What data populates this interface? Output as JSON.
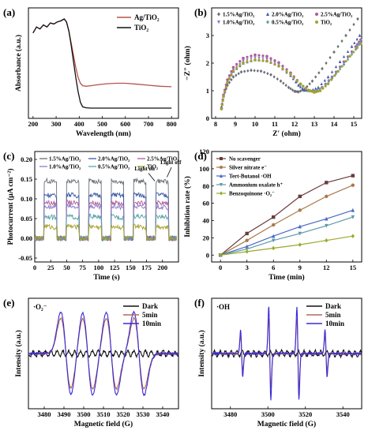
{
  "chart_data": [
    {
      "panel": "(a)",
      "type": "line",
      "xlabel": "Wavelength (nm)",
      "ylabel": "Absorbance (a.u.)",
      "xlim": [
        180,
        830
      ],
      "ylim": [
        -0.05,
        1.05
      ],
      "xticks": [
        200,
        300,
        400,
        500,
        600,
        700,
        800
      ],
      "yticks_shown": false,
      "legend_position": "top-right",
      "series": [
        {
          "name": "Ag/TiO₂",
          "color": "#b5534a",
          "x": [
            200,
            215,
            230,
            245,
            260,
            275,
            290,
            305,
            320,
            335,
            345,
            355,
            365,
            375,
            385,
            395,
            405,
            415,
            430,
            450,
            480,
            520,
            560,
            600,
            650,
            700,
            750,
            800
          ],
          "y": [
            0.8,
            0.86,
            0.84,
            0.88,
            0.86,
            0.9,
            0.89,
            0.91,
            0.92,
            0.94,
            0.91,
            0.82,
            0.7,
            0.58,
            0.46,
            0.36,
            0.3,
            0.275,
            0.27,
            0.275,
            0.285,
            0.295,
            0.3,
            0.3,
            0.29,
            0.28,
            0.27,
            0.265
          ]
        },
        {
          "name": "TiO₂",
          "color": "#111111",
          "x": [
            200,
            215,
            230,
            245,
            260,
            275,
            290,
            305,
            320,
            335,
            345,
            355,
            365,
            375,
            385,
            395,
            405,
            415,
            430,
            450,
            480,
            520,
            560,
            600,
            650,
            700,
            750,
            800
          ],
          "y": [
            0.8,
            0.86,
            0.84,
            0.88,
            0.86,
            0.9,
            0.89,
            0.91,
            0.92,
            0.94,
            0.91,
            0.82,
            0.68,
            0.52,
            0.36,
            0.22,
            0.11,
            0.065,
            0.055,
            0.052,
            0.052,
            0.052,
            0.052,
            0.052,
            0.052,
            0.052,
            0.052,
            0.052
          ]
        }
      ]
    },
    {
      "panel": "(b)",
      "type": "scatter",
      "xlabel": "Z′ (ohm)",
      "ylabel": "−Z″ (ohm)",
      "xlim": [
        7.8,
        15.4
      ],
      "ylim": [
        0,
        4.0
      ],
      "xticks": [
        8,
        9,
        10,
        11,
        12,
        13,
        14,
        15
      ],
      "yticks": [
        0,
        1,
        2,
        3
      ],
      "legend_position": "top",
      "series": [
        {
          "name": "1.5%Ag/TiO₂",
          "color": "#6a6f78",
          "marker": "diamond",
          "x": [
            8.3,
            8.4,
            8.6,
            8.9,
            9.3,
            9.8,
            10.3,
            10.8,
            11.3,
            11.7,
            12.0,
            12.2,
            12.5,
            12.9,
            13.4,
            14.0,
            14.6,
            15.2
          ],
          "y": [
            0.4,
            0.8,
            1.2,
            1.5,
            1.68,
            1.74,
            1.71,
            1.58,
            1.35,
            1.12,
            0.98,
            0.96,
            1.05,
            1.35,
            1.8,
            2.4,
            3.0,
            3.6
          ]
        },
        {
          "name": "2.0%Ag/TiO₂",
          "color": "#3d5aa8",
          "marker": "triangle-up",
          "x": [
            8.3,
            8.4,
            8.6,
            8.9,
            9.4,
            10.0,
            10.6,
            11.2,
            11.8,
            12.2,
            12.5,
            12.8,
            13.2,
            13.7,
            14.3,
            14.9,
            15.3
          ],
          "y": [
            0.35,
            0.8,
            1.3,
            1.7,
            2.0,
            2.12,
            2.08,
            1.9,
            1.55,
            1.2,
            1.02,
            1.0,
            1.12,
            1.5,
            2.05,
            2.6,
            3.0
          ]
        },
        {
          "name": "2.5%Ag/TiO₂",
          "color": "#b05a9a",
          "marker": "circle",
          "x": [
            8.3,
            8.4,
            8.6,
            8.9,
            9.4,
            10.0,
            10.6,
            11.2,
            11.8,
            12.3,
            12.7,
            13.0,
            13.4,
            13.9,
            14.5,
            15.1,
            15.35
          ],
          "y": [
            0.35,
            0.85,
            1.4,
            1.85,
            2.18,
            2.3,
            2.25,
            2.02,
            1.65,
            1.25,
            1.0,
            0.98,
            1.12,
            1.5,
            2.05,
            2.6,
            2.85
          ]
        },
        {
          "name": "1.0%Ag/TiO₂",
          "color": "#8a7cc6",
          "marker": "triangle-down",
          "x": [
            8.3,
            8.4,
            8.6,
            8.9,
            9.4,
            10.0,
            10.6,
            11.2,
            11.8,
            12.3,
            12.7,
            13.0,
            13.4,
            13.9,
            14.5,
            15.1,
            15.35
          ],
          "y": [
            0.35,
            0.8,
            1.3,
            1.75,
            2.08,
            2.2,
            2.15,
            1.95,
            1.6,
            1.22,
            1.0,
            0.97,
            1.1,
            1.48,
            2.0,
            2.55,
            2.8
          ]
        },
        {
          "name": "0.5%Ag/TiO₂",
          "color": "#5aa0a8",
          "marker": "diamond",
          "x": [
            8.3,
            8.4,
            8.6,
            8.9,
            9.4,
            10.0,
            10.6,
            11.2,
            11.8,
            12.3,
            12.7,
            13.0,
            13.4,
            13.9,
            14.5,
            15.1,
            15.35
          ],
          "y": [
            0.35,
            0.8,
            1.3,
            1.72,
            2.02,
            2.12,
            2.08,
            1.9,
            1.58,
            1.22,
            1.02,
            0.98,
            1.1,
            1.45,
            1.95,
            2.5,
            2.75
          ]
        },
        {
          "name": "TiO₂",
          "color": "#a8a02a",
          "marker": "circle",
          "x": [
            8.3,
            8.4,
            8.6,
            8.9,
            9.4,
            10.0,
            10.6,
            11.2,
            11.8,
            12.3,
            12.7,
            13.0,
            13.3,
            13.7,
            14.2,
            14.8,
            15.35
          ],
          "y": [
            0.35,
            0.8,
            1.3,
            1.72,
            2.02,
            2.12,
            2.08,
            1.9,
            1.6,
            1.25,
            1.02,
            0.94,
            1.0,
            1.25,
            1.7,
            2.25,
            2.7
          ]
        }
      ]
    },
    {
      "panel": "(c)",
      "type": "line",
      "xlabel": "Time (s)",
      "ylabel": "Photocurrent (μA cm⁻²)",
      "xlim": [
        0,
        225
      ],
      "ylim": [
        -0.06,
        0.22
      ],
      "xticks": [
        0,
        25,
        50,
        75,
        100,
        125,
        150,
        175,
        200
      ],
      "yticks": [
        -0.05,
        0.0,
        0.05,
        0.1,
        0.15,
        0.2
      ],
      "yticklabels": [
        "-0.05",
        "0.00",
        "0.05",
        "0.10",
        "0.15",
        "0.20"
      ],
      "on_off_cycles_s": [
        [
          15,
          35
        ],
        [
          50,
          70
        ],
        [
          85,
          105
        ],
        [
          120,
          140
        ],
        [
          155,
          175
        ],
        [
          190,
          210
        ]
      ],
      "legend_position": "top",
      "annotations": [
        "Light on",
        "Light off"
      ],
      "series": [
        {
          "name": "1.5%Ag/TiO₂",
          "color": "#6a6f78",
          "on": 0.15,
          "off": 0.0
        },
        {
          "name": "2.0%Ag/TiO₂",
          "color": "#3d5aa8",
          "on": 0.115,
          "off": 0.0
        },
        {
          "name": "2.5%Ag/TiO₂",
          "color": "#b05a9a",
          "on": 0.095,
          "off": 0.0
        },
        {
          "name": "1.0%Ag/TiO₂",
          "color": "#8a7cc6",
          "on": 0.085,
          "off": 0.0
        },
        {
          "name": "0.5%Ag/TiO₂",
          "color": "#5aa0a8",
          "on": 0.06,
          "off": 0.0
        },
        {
          "name": "TiO₂",
          "color": "#a8a02a",
          "on": 0.035,
          "off": 0.0
        }
      ]
    },
    {
      "panel": "(d)",
      "type": "line",
      "xlabel": "Time (min)",
      "ylabel": "Inhibition rate (%)",
      "xlim": [
        -1,
        16
      ],
      "ylim": [
        -8,
        120
      ],
      "xticks": [
        0,
        3,
        6,
        9,
        12,
        15
      ],
      "yticks": [
        0,
        20,
        40,
        60,
        80,
        100,
        120
      ],
      "legend_position": "top-left",
      "x": [
        0,
        3,
        6,
        9,
        12,
        15
      ],
      "series": [
        {
          "name": "No scavenger",
          "color": "#6b3a3a",
          "marker": "square",
          "values": [
            0,
            25,
            44,
            68,
            84,
            92
          ]
        },
        {
          "name": "Silver nitrate e⁻",
          "color": "#a87a4a",
          "marker": "circle",
          "values": [
            0,
            17,
            35,
            52,
            68,
            81
          ]
        },
        {
          "name": "Tert-Butanol ·OH",
          "color": "#4a6abf",
          "marker": "triangle-up",
          "values": [
            0,
            10,
            22,
            33,
            42,
            52
          ]
        },
        {
          "name": "Ammonium oxalate h⁺",
          "color": "#5a9aa8",
          "marker": "triangle-down",
          "values": [
            0,
            7,
            17,
            25,
            34,
            44
          ]
        },
        {
          "name": "Benzoquinone ·O₂⁻",
          "color": "#9aaa2a",
          "marker": "diamond",
          "values": [
            0,
            4,
            8,
            12,
            17,
            22
          ]
        }
      ]
    },
    {
      "panel": "(e)",
      "type": "line",
      "annotation": "·O₂⁻",
      "xlabel": "Magnetic field (G)",
      "ylabel": "Intensity (a.u.)",
      "xlim": [
        3472,
        3548
      ],
      "xticks": [
        3480,
        3490,
        3500,
        3510,
        3520,
        3530,
        3540
      ],
      "yticks_shown": false,
      "legend_position": "top-right",
      "line_centers_G": [
        3491,
        3502,
        3514,
        3528
      ],
      "series": [
        {
          "name": "Dark",
          "color": "#111111",
          "amplitude": 0.08
        },
        {
          "name": "5min",
          "color": "#b06a5a",
          "amplitude": 0.85
        },
        {
          "name": "10min",
          "color": "#3a2ad6",
          "amplitude": 1.0
        }
      ]
    },
    {
      "panel": "(f)",
      "type": "line",
      "annotation": "·OH",
      "xlabel": "Magnetic field (G)",
      "ylabel": "Intensity (a.u.)",
      "xlim": [
        3470,
        3550
      ],
      "xticks": [
        3480,
        3500,
        3520,
        3540
      ],
      "yticks_shown": false,
      "legend_position": "top-right",
      "line_centers_G": [
        3486,
        3501,
        3516,
        3531
      ],
      "line_ratios": [
        1,
        2,
        2,
        1
      ],
      "series": [
        {
          "name": "Dark",
          "color": "#111111",
          "amplitude": 0.02
        },
        {
          "name": "5min",
          "color": "#b06a5a",
          "amplitude": 0.75
        },
        {
          "name": "10min",
          "color": "#3a2ad6",
          "amplitude": 1.0
        }
      ]
    }
  ]
}
